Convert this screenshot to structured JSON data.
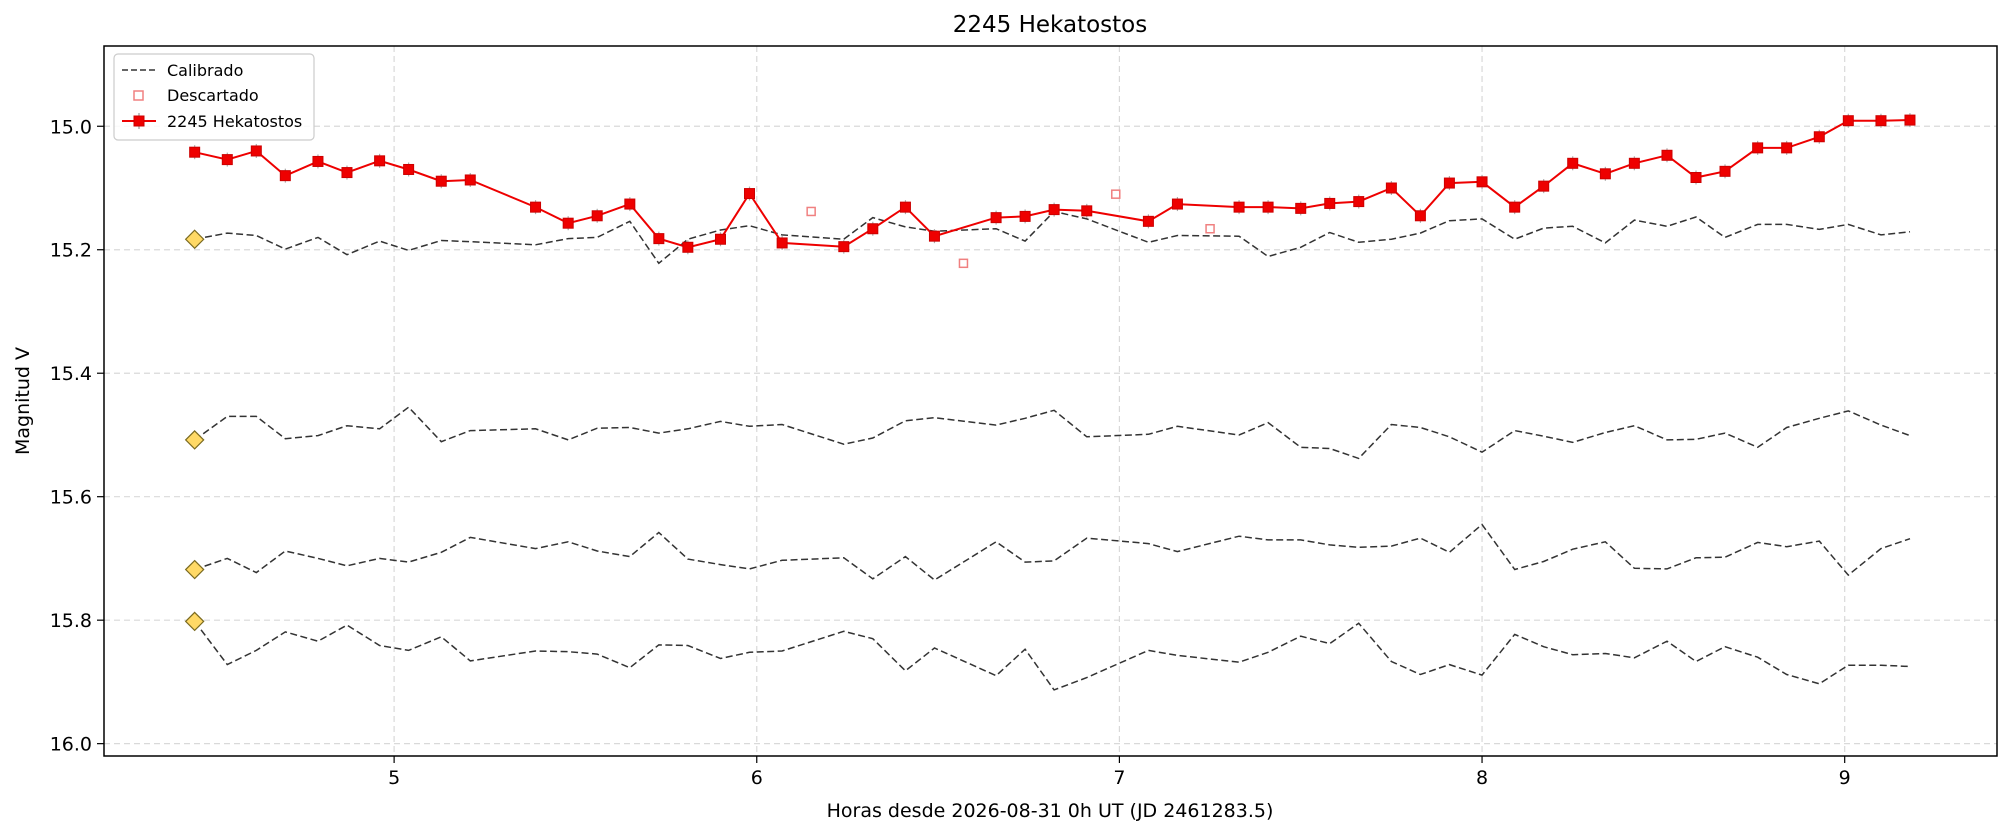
{
  "chart_data": {
    "type": "line",
    "title": "2245 Hekatostos",
    "xlabel": "Horas desde 2026-08-31 0h UT (JD 2461283.5)",
    "ylabel": "Magnitud V",
    "xlim": [
      4.2,
      9.42
    ],
    "ylim": [
      16.02,
      14.87
    ],
    "y_inverted": true,
    "grid": true,
    "legend_position": "top-left",
    "x_ticks": [
      "5",
      "6",
      "7",
      "8",
      "9"
    ],
    "y_ticks": [
      "15.0",
      "15.2",
      "15.4",
      "15.6",
      "15.8",
      "16.0"
    ],
    "x_tick_values": [
      5,
      6,
      7,
      8,
      9
    ],
    "y_tick_values": [
      15.0,
      15.2,
      15.4,
      15.6,
      15.8,
      16.0
    ],
    "legend": [
      {
        "label": "Calibrado",
        "style": "dashed",
        "color": "#333333"
      },
      {
        "label": "Descartado",
        "style": "open-square",
        "color": "#f08080"
      },
      {
        "label": "2245 Hekatostos",
        "style": "line-square-errorbar",
        "color": "#ee0000"
      }
    ],
    "series": [
      {
        "name": "2245 Hekatostos",
        "color": "#ee0000",
        "x": [
          4.45,
          4.54,
          4.62,
          4.7,
          4.79,
          4.87,
          4.96,
          5.04,
          5.13,
          5.21,
          5.39,
          5.48,
          5.56,
          5.65,
          5.73,
          5.81,
          5.9,
          5.98,
          6.07,
          6.24,
          6.32,
          6.41,
          6.49,
          6.66,
          6.74,
          6.82,
          6.91,
          7.08,
          7.16,
          7.33,
          7.41,
          7.5,
          7.58,
          7.66,
          7.75,
          7.83,
          7.91,
          8.0,
          8.09,
          8.17,
          8.25,
          8.34,
          8.42,
          8.51,
          8.59,
          8.67,
          8.76,
          8.84,
          8.93,
          9.01,
          9.1,
          9.18
        ],
        "y": [
          15.042,
          15.054,
          15.04,
          15.08,
          15.057,
          15.075,
          15.056,
          15.07,
          15.089,
          15.087,
          15.131,
          15.157,
          15.145,
          15.126,
          15.182,
          15.196,
          15.183,
          15.109,
          15.189,
          15.195,
          15.166,
          15.131,
          15.178,
          15.148,
          15.146,
          15.135,
          15.137,
          15.154,
          15.126,
          15.131,
          15.131,
          15.133,
          15.125,
          15.122,
          15.1,
          15.145,
          15.092,
          15.09,
          15.131,
          15.097,
          15.06,
          15.077,
          15.06,
          15.047,
          15.083,
          15.073,
          15.035,
          15.035,
          15.017,
          14.991,
          14.991,
          14.99
        ]
      },
      {
        "name": "Descartado",
        "color": "#f08080",
        "x": [
          6.15,
          6.57,
          6.99,
          7.25
        ],
        "y": [
          15.138,
          15.222,
          15.11,
          15.166
        ]
      },
      {
        "name": "Calibrado 1",
        "color": "#333333",
        "x": [
          4.45,
          4.54,
          4.62,
          4.7,
          4.79,
          4.87,
          4.96,
          5.04,
          5.13,
          5.21,
          5.39,
          5.48,
          5.56,
          5.65,
          5.73,
          5.81,
          5.9,
          5.98,
          6.07,
          6.24,
          6.32,
          6.41,
          6.49,
          6.66,
          6.74,
          6.82,
          6.91,
          7.08,
          7.16,
          7.33,
          7.41,
          7.5,
          7.58,
          7.66,
          7.75,
          7.83,
          7.91,
          8.0,
          8.09,
          8.17,
          8.25,
          8.34,
          8.42,
          8.51,
          8.59,
          8.67,
          8.76,
          8.84,
          8.93,
          9.01,
          9.1,
          9.18
        ],
        "y": [
          15.183,
          15.173,
          15.177,
          15.199,
          15.18,
          15.208,
          15.186,
          15.201,
          15.185,
          15.187,
          15.192,
          15.182,
          15.18,
          15.154,
          15.222,
          15.183,
          15.168,
          15.161,
          15.176,
          15.183,
          15.148,
          15.163,
          15.17,
          15.166,
          15.186,
          15.138,
          15.15,
          15.188,
          15.177,
          15.178,
          15.211,
          15.196,
          15.172,
          15.188,
          15.183,
          15.173,
          15.153,
          15.15,
          15.183,
          15.165,
          15.162,
          15.189,
          15.152,
          15.162,
          15.147,
          15.18,
          15.159,
          15.159,
          15.167,
          15.159,
          15.176,
          15.171
        ]
      },
      {
        "name": "Calibrado 2",
        "color": "#333333",
        "x": [
          4.45,
          4.54,
          4.62,
          4.7,
          4.79,
          4.87,
          4.96,
          5.04,
          5.13,
          5.21,
          5.39,
          5.48,
          5.56,
          5.65,
          5.73,
          5.81,
          5.9,
          5.98,
          6.07,
          6.24,
          6.32,
          6.41,
          6.49,
          6.66,
          6.74,
          6.82,
          6.91,
          7.08,
          7.16,
          7.33,
          7.41,
          7.5,
          7.58,
          7.66,
          7.75,
          7.83,
          7.91,
          8.0,
          8.09,
          8.17,
          8.25,
          8.34,
          8.42,
          8.51,
          8.59,
          8.67,
          8.76,
          8.84,
          8.93,
          9.01,
          9.1,
          9.18
        ],
        "y": [
          15.508,
          15.47,
          15.47,
          15.506,
          15.501,
          15.485,
          15.49,
          15.455,
          15.511,
          15.493,
          15.49,
          15.508,
          15.489,
          15.488,
          15.497,
          15.49,
          15.478,
          15.486,
          15.483,
          15.515,
          15.505,
          15.477,
          15.472,
          15.484,
          15.473,
          15.46,
          15.503,
          15.499,
          15.486,
          15.5,
          15.48,
          15.52,
          15.522,
          15.538,
          15.483,
          15.488,
          15.503,
          15.528,
          15.493,
          15.502,
          15.512,
          15.496,
          15.485,
          15.508,
          15.507,
          15.497,
          15.52,
          15.488,
          15.473,
          15.461,
          15.484,
          15.501
        ]
      },
      {
        "name": "Calibrado 3",
        "color": "#333333",
        "x": [
          4.45,
          4.54,
          4.62,
          4.7,
          4.79,
          4.87,
          4.96,
          5.04,
          5.13,
          5.21,
          5.39,
          5.48,
          5.56,
          5.65,
          5.73,
          5.81,
          5.9,
          5.98,
          6.07,
          6.24,
          6.32,
          6.41,
          6.49,
          6.66,
          6.74,
          6.82,
          6.91,
          7.08,
          7.16,
          7.33,
          7.41,
          7.5,
          7.58,
          7.66,
          7.75,
          7.83,
          7.91,
          8.0,
          8.09,
          8.17,
          8.25,
          8.34,
          8.42,
          8.51,
          8.59,
          8.67,
          8.76,
          8.84,
          8.93,
          9.01,
          9.1,
          9.18
        ],
        "y": [
          15.718,
          15.7,
          15.723,
          15.688,
          15.7,
          15.712,
          15.7,
          15.706,
          15.69,
          15.666,
          15.684,
          15.673,
          15.688,
          15.697,
          15.658,
          15.701,
          15.71,
          15.717,
          15.703,
          15.699,
          15.733,
          15.697,
          15.735,
          15.673,
          15.706,
          15.704,
          15.667,
          15.676,
          15.689,
          15.664,
          15.67,
          15.67,
          15.678,
          15.682,
          15.68,
          15.667,
          15.69,
          15.645,
          15.718,
          15.705,
          15.685,
          15.673,
          15.716,
          15.717,
          15.699,
          15.698,
          15.674,
          15.681,
          15.672,
          15.727,
          15.684,
          15.668
        ]
      },
      {
        "name": "Calibrado 4",
        "color": "#333333",
        "x": [
          4.45,
          4.54,
          4.62,
          4.7,
          4.79,
          4.87,
          4.96,
          5.04,
          5.13,
          5.21,
          5.39,
          5.48,
          5.56,
          5.65,
          5.73,
          5.81,
          5.9,
          5.98,
          6.07,
          6.24,
          6.32,
          6.41,
          6.49,
          6.66,
          6.74,
          6.82,
          6.91,
          7.08,
          7.16,
          7.33,
          7.41,
          7.5,
          7.58,
          7.66,
          7.75,
          7.83,
          7.91,
          8.0,
          8.09,
          8.17,
          8.25,
          8.34,
          8.42,
          8.51,
          8.59,
          8.67,
          8.76,
          8.84,
          8.93,
          9.01,
          9.1,
          9.18
        ],
        "y": [
          15.802,
          15.872,
          15.849,
          15.819,
          15.834,
          15.808,
          15.841,
          15.849,
          15.827,
          15.866,
          15.85,
          15.851,
          15.855,
          15.877,
          15.84,
          15.841,
          15.862,
          15.852,
          15.85,
          15.818,
          15.83,
          15.882,
          15.845,
          15.89,
          15.847,
          15.913,
          15.893,
          15.849,
          15.857,
          15.868,
          15.852,
          15.826,
          15.838,
          15.805,
          15.867,
          15.888,
          15.872,
          15.889,
          15.823,
          15.843,
          15.856,
          15.854,
          15.861,
          15.834,
          15.867,
          15.843,
          15.86,
          15.888,
          15.903,
          15.873,
          15.873,
          15.875
        ]
      }
    ],
    "comparison_markers": {
      "shape": "diamond",
      "color": "#ffd966",
      "x": [
        4.45,
        4.45,
        4.45,
        4.45
      ],
      "y": [
        15.183,
        15.508,
        15.718,
        15.802
      ]
    }
  }
}
